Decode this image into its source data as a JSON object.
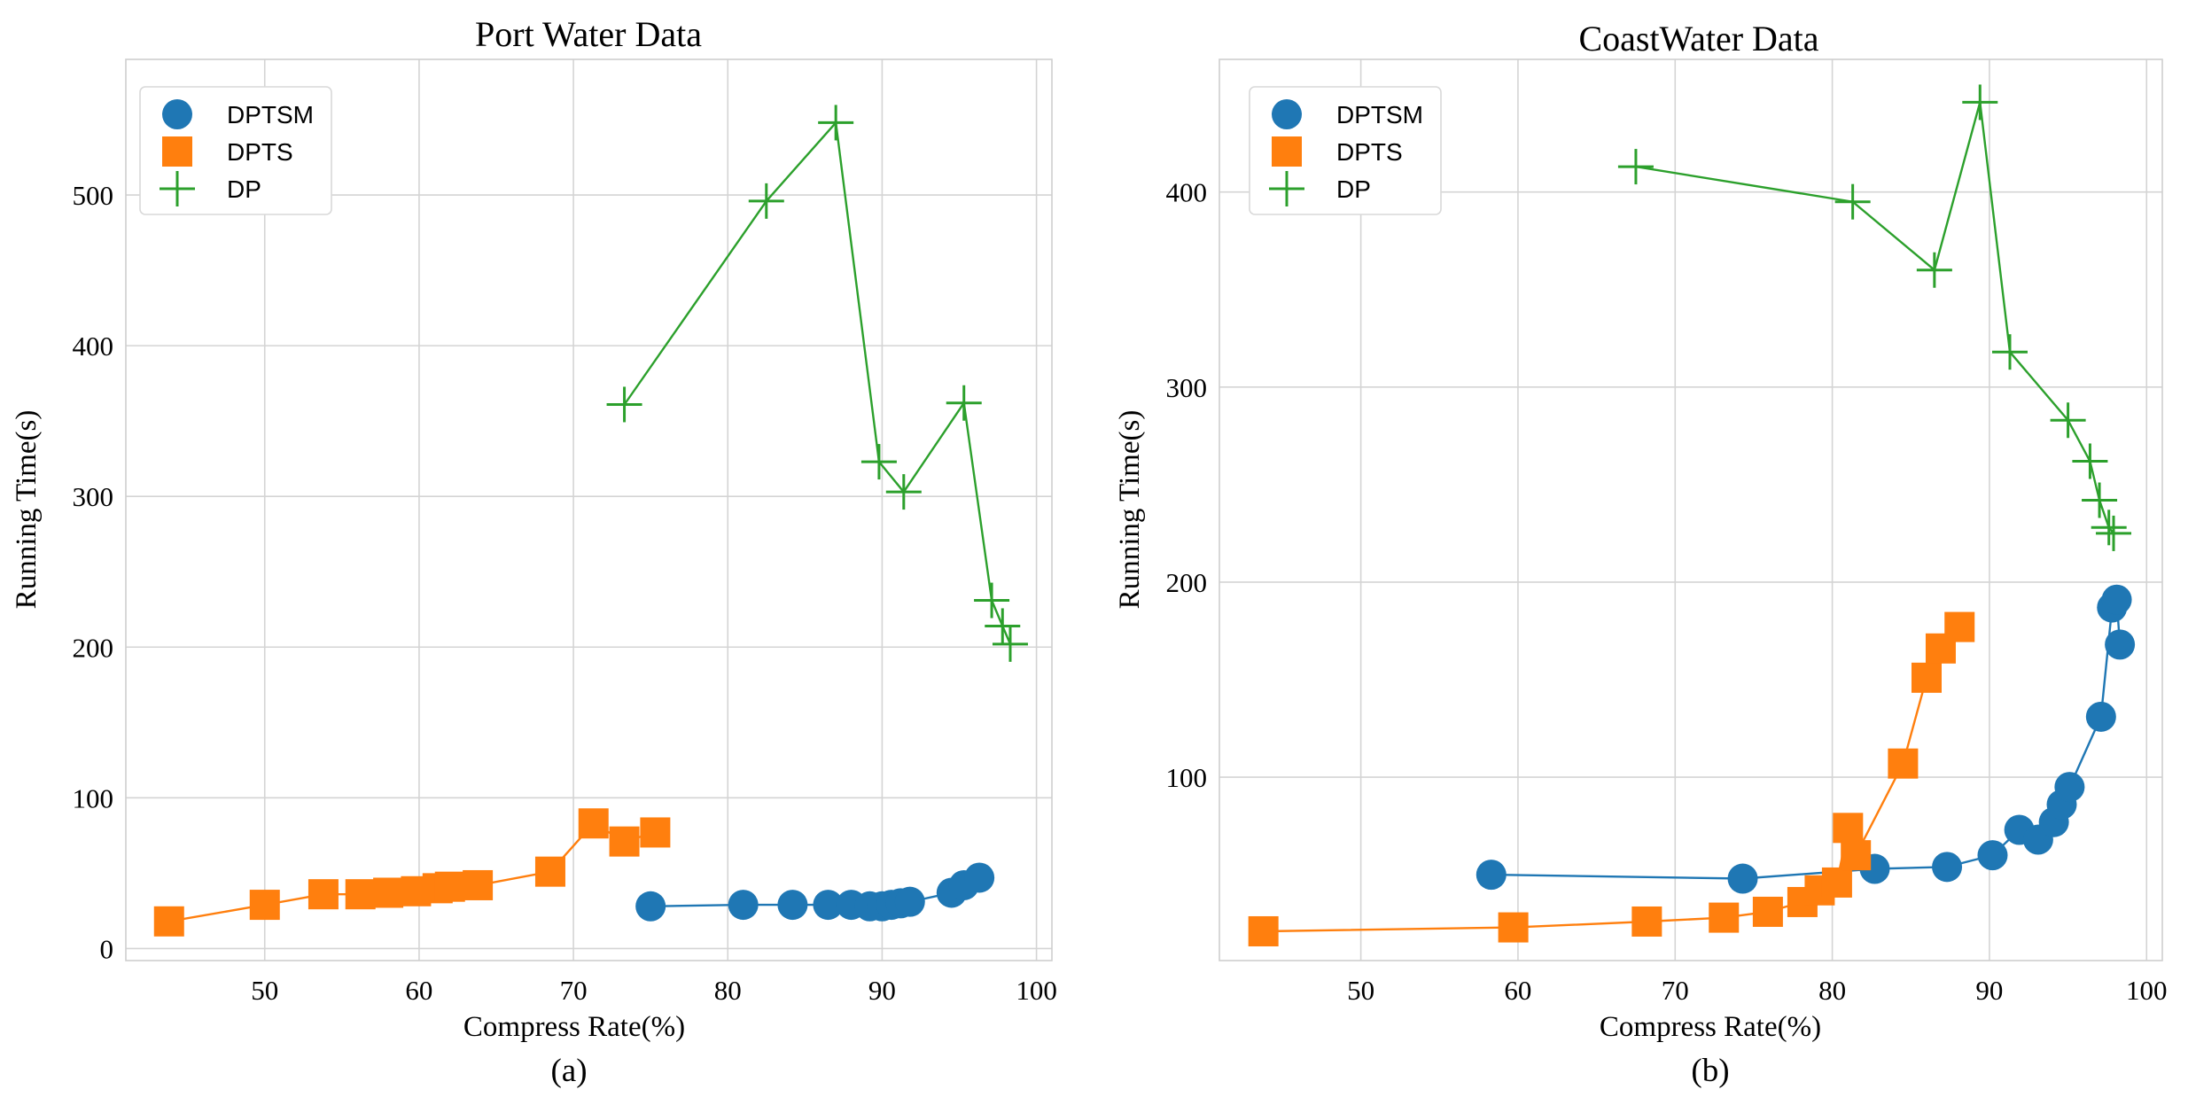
{
  "figure": {
    "panels": [
      {
        "caption": "(a)",
        "chart_data": {
          "type": "scatter",
          "title": "Port Water Data",
          "xlabel": "Compress Rate(%)",
          "ylabel": "Running Time(s)",
          "xlim": [
            41,
            101
          ],
          "ylim": [
            -8,
            590
          ],
          "xticks": [
            50,
            60,
            70,
            80,
            90,
            100
          ],
          "yticks": [
            0,
            100,
            200,
            300,
            400,
            500
          ],
          "grid": true,
          "legend_position": "top-left",
          "series": [
            {
              "name": "DPTSM",
              "color": "#1f77b4",
              "marker": "circle",
              "x": [
                75,
                81,
                84.2,
                86.5,
                88,
                89.2,
                90,
                90.6,
                91.2,
                91.8,
                94.5,
                95.3,
                96.3
              ],
              "y": [
                28,
                29,
                29,
                29,
                29,
                28,
                28,
                29,
                30,
                31,
                37,
                42,
                47
              ]
            },
            {
              "name": "DPTS",
              "color": "#ff7f0e",
              "marker": "square",
              "x": [
                43.8,
                50,
                53.8,
                56.2,
                58,
                59.8,
                61.2,
                62,
                63.8,
                68.5,
                71.3,
                73.3,
                75.3
              ],
              "y": [
                18,
                29,
                36,
                36,
                37,
                38,
                40,
                41,
                42,
                51,
                83,
                71,
                77
              ]
            },
            {
              "name": "DP",
              "color": "#2ca02c",
              "marker": "plus",
              "x": [
                73.3,
                82.5,
                87,
                89.8,
                91.4,
                95.3,
                97.1,
                97.8,
                98.3
              ],
              "y": [
                361,
                496,
                548,
                323,
                303,
                362,
                231,
                214,
                202
              ]
            }
          ]
        }
      },
      {
        "caption": "(b)",
        "chart_data": {
          "type": "scatter",
          "title": "CoastWater Data",
          "xlabel": "Compress Rate(%)",
          "ylabel": "Running Time(s)",
          "xlim": [
            41,
            101
          ],
          "ylim": [
            6,
            468
          ],
          "xticks": [
            50,
            60,
            70,
            80,
            90,
            100
          ],
          "yticks": [
            100,
            200,
            300,
            400
          ],
          "grid": true,
          "legend_position": "top-left",
          "series": [
            {
              "name": "DPTSM",
              "color": "#1f77b4",
              "marker": "circle",
              "x": [
                58.3,
                74.3,
                82.7,
                87.3,
                90.2,
                91.9,
                93.1,
                94.1,
                94.6,
                95.1,
                97.1,
                97.8,
                98.1,
                98.3
              ],
              "y": [
                50,
                48,
                53,
                54,
                60,
                73,
                68,
                77,
                86,
                95,
                131,
                187,
                191,
                168
              ]
            },
            {
              "name": "DPTS",
              "color": "#ff7f0e",
              "marker": "square",
              "x": [
                43.8,
                59.7,
                68.2,
                73.1,
                75.9,
                78.1,
                79.2,
                80.3,
                81,
                81.5,
                84.5,
                86,
                86.9,
                88.1
              ],
              "y": [
                21,
                23,
                26,
                28,
                31,
                36,
                42,
                46,
                74,
                60,
                107,
                151,
                166,
                177
              ]
            },
            {
              "name": "DP",
              "color": "#2ca02c",
              "marker": "plus",
              "x": [
                67.5,
                81.3,
                86.5,
                89.4,
                91.3,
                95,
                96.4,
                97,
                97.6,
                97.9
              ],
              "y": [
                413,
                395,
                360,
                446,
                318,
                283,
                262,
                242,
                228,
                225
              ]
            }
          ]
        }
      }
    ]
  }
}
